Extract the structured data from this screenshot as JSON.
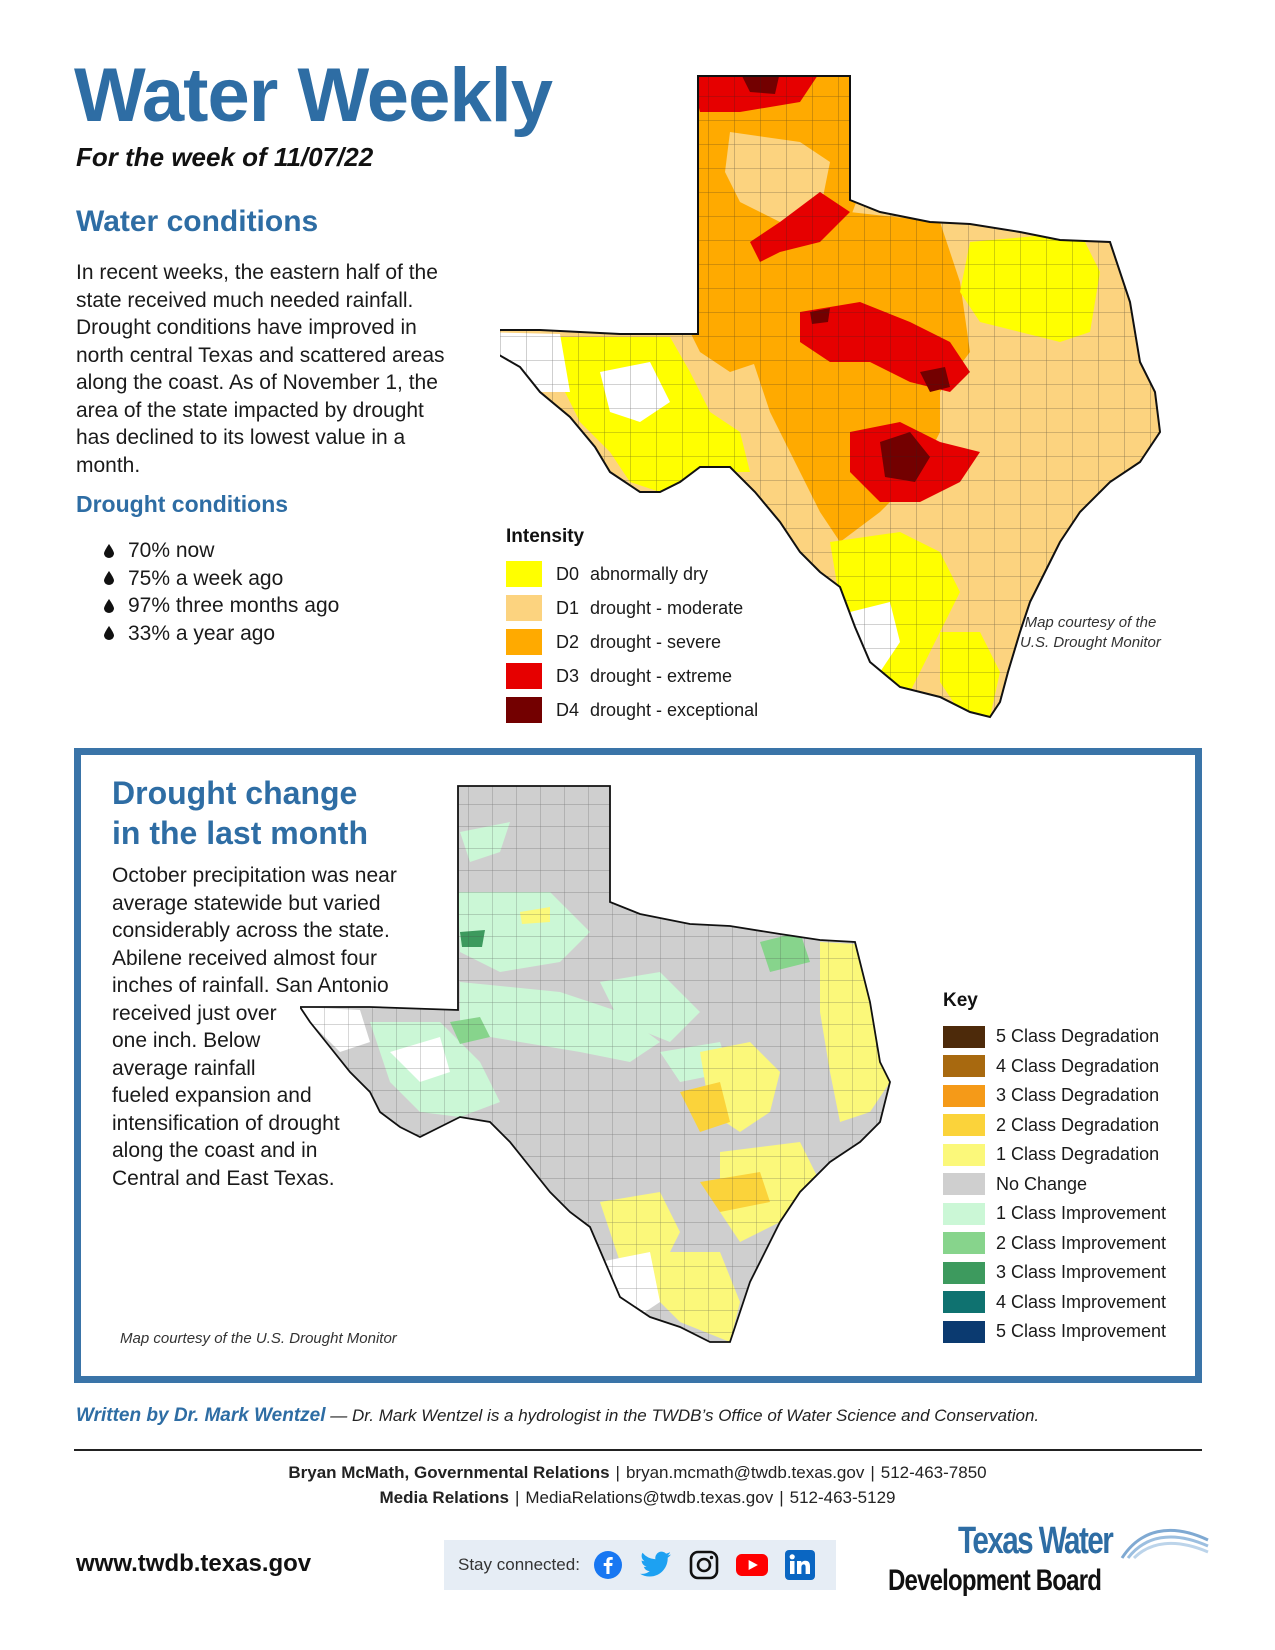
{
  "header": {
    "title": "Water Weekly",
    "week": "For the week of 11/07/22"
  },
  "water_conditions": {
    "heading": "Water conditions",
    "lines": [
      "In recent weeks, the eastern half of the",
      "state received much needed rainfall.",
      "Drought conditions have improved in",
      "north central Texas and scattered areas",
      "along the coast. As of November 1, the",
      "area of the state impacted by drought",
      "has declined to its lowest value in a",
      "month."
    ]
  },
  "drought_conditions": {
    "heading": "Drought conditions",
    "items": [
      "70% now",
      "75% a week ago",
      "97% three months ago",
      "33% a year ago"
    ]
  },
  "map1_legend": {
    "title": "Intensity",
    "items": [
      {
        "code": "D0",
        "label": "abnormally dry",
        "color": "#ffff00"
      },
      {
        "code": "D1",
        "label": "drought - moderate",
        "color": "#fcd37f"
      },
      {
        "code": "D2",
        "label": "drought - severe",
        "color": "#ffaa00"
      },
      {
        "code": "D3",
        "label": "drought - extreme",
        "color": "#e60000"
      },
      {
        "code": "D4",
        "label": "drought - exceptional",
        "color": "#730000"
      }
    ],
    "credit_line1": "Map courtesy of the",
    "credit_line2": "U.S. Drought Monitor"
  },
  "drought_change": {
    "title_line1": "Drought change",
    "title_line2": "in the last month",
    "lines": [
      "October precipitation was near",
      "average statewide but varied",
      "considerably across the state.",
      "Abilene received almost four",
      "inches of rainfall. San Antonio",
      "received just over",
      "one inch. Below",
      "average rainfall",
      "fueled expansion and",
      "intensification of drought",
      "along the coast and in",
      "Central and East Texas."
    ],
    "credit": "Map courtesy of the U.S. Drought Monitor",
    "key_title": "Key",
    "key": [
      {
        "label": "5 Class Degradation",
        "color": "#4d2a0a"
      },
      {
        "label": "4 Class Degradation",
        "color": "#a8690f"
      },
      {
        "label": "3 Class Degradation",
        "color": "#f59a18"
      },
      {
        "label": "2 Class Degradation",
        "color": "#fbd33a"
      },
      {
        "label": "1 Class Degradation",
        "color": "#fbf87a"
      },
      {
        "label": "No Change",
        "color": "#cfcfcf"
      },
      {
        "label": "1 Class Improvement",
        "color": "#cbf7d6"
      },
      {
        "label": "2 Class Improvement",
        "color": "#87d48c"
      },
      {
        "label": "3 Class Improvement",
        "color": "#3d9a5e"
      },
      {
        "label": "4 Class Improvement",
        "color": "#0f7270"
      },
      {
        "label": "5 Class Improvement",
        "color": "#0b3a70"
      }
    ]
  },
  "author": {
    "name": "Written by Dr. Mark Wentzel",
    "desc": " — Dr. Mark Wentzel is a hydrologist in the TWDB’s Office of Water Science and Conservation."
  },
  "contacts": [
    {
      "name": "Bryan McMath, Governmental Relations",
      "email": "bryan.mcmath@twdb.texas.gov",
      "phone": "512-463-7850"
    },
    {
      "name": "Media Relations",
      "email": "MediaRelations@twdb.texas.gov",
      "phone": "512-463-5129"
    }
  ],
  "footer": {
    "website": "www.twdb.texas.gov",
    "stay_connected": "Stay connected:",
    "icons": [
      "facebook-icon",
      "twitter-icon",
      "instagram-icon",
      "youtube-icon",
      "linkedin-icon"
    ],
    "logo_line1": "Texas Water",
    "logo_line2": "Development Board"
  },
  "colors": {
    "accent_blue": "#2e6da4",
    "box_border": "#3a74a8"
  }
}
